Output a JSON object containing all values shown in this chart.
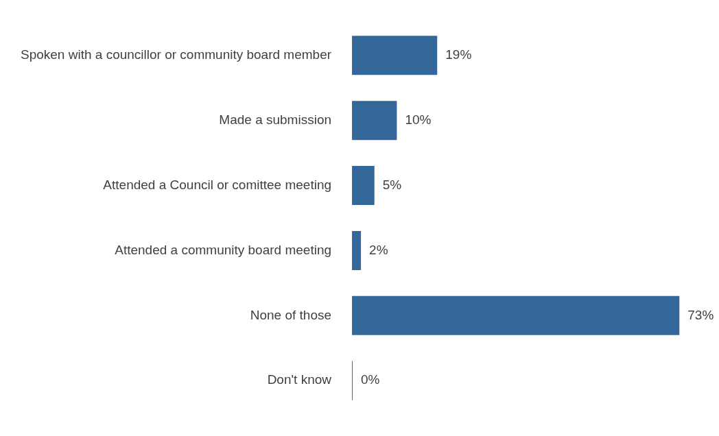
{
  "chart_data": {
    "type": "bar",
    "orientation": "horizontal",
    "categories": [
      "Spoken with a councillor or community board member",
      "Made a submission",
      "Attended a Council or comittee meeting",
      "Attended a community board meeting",
      "None of those",
      "Don't know"
    ],
    "values": [
      19,
      10,
      5,
      2,
      73,
      0
    ],
    "value_labels": [
      "19%",
      "10%",
      "5%",
      "2%",
      "73%",
      "0%"
    ],
    "color": "#336699",
    "legend": false
  }
}
